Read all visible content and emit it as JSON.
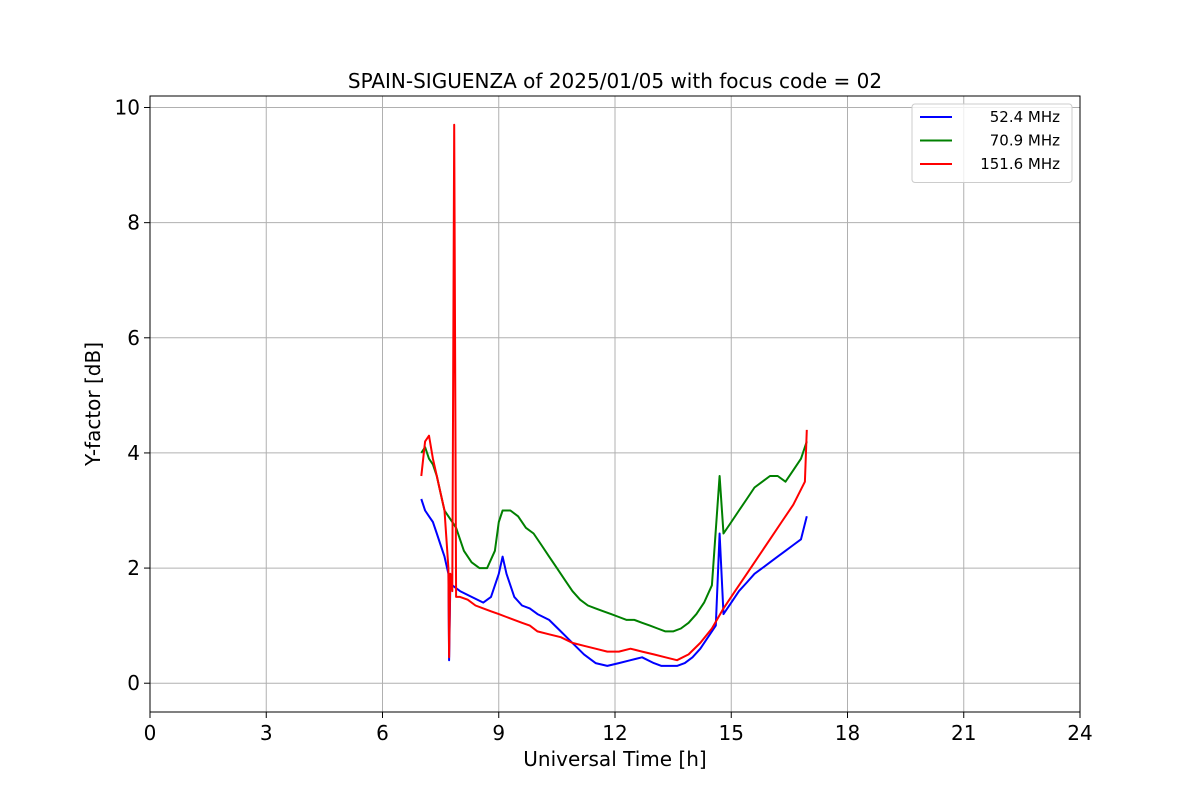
{
  "chart_data": {
    "type": "line",
    "title": "SPAIN-SIGUENZA of 2025/01/05 with focus code = 02",
    "xlabel": "Universal Time [h]",
    "ylabel": "Y-factor [dB]",
    "xlim": [
      0,
      24
    ],
    "ylim": [
      -0.5,
      10.2
    ],
    "xticks": [
      0,
      3,
      6,
      9,
      12,
      15,
      18,
      21,
      24
    ],
    "xtick_labels": [
      "0",
      "3",
      "6",
      "9",
      "12",
      "15",
      "18",
      "21",
      "24"
    ],
    "yticks": [
      0,
      2,
      4,
      6,
      8,
      10
    ],
    "ytick_labels": [
      "0",
      "2",
      "4",
      "6",
      "8",
      "10"
    ],
    "grid": true,
    "legend_position": "top-right",
    "series": [
      {
        "name": "52.4 MHz",
        "color": "#0000ff",
        "x": [
          7.0,
          7.1,
          7.2,
          7.3,
          7.4,
          7.5,
          7.6,
          7.7,
          7.72,
          7.75,
          7.8,
          8.0,
          8.3,
          8.6,
          8.8,
          9.0,
          9.1,
          9.2,
          9.4,
          9.6,
          9.8,
          10.0,
          10.3,
          10.6,
          10.9,
          11.2,
          11.5,
          11.8,
          12.1,
          12.4,
          12.7,
          13.0,
          13.2,
          13.4,
          13.6,
          13.8,
          14.0,
          14.2,
          14.4,
          14.6,
          14.7,
          14.8,
          15.0,
          15.2,
          15.4,
          15.6,
          15.8,
          16.0,
          16.2,
          16.4,
          16.6,
          16.8,
          16.95
        ],
        "y": [
          3.2,
          3.0,
          2.9,
          2.8,
          2.6,
          2.4,
          2.2,
          1.9,
          0.4,
          1.7,
          1.7,
          1.6,
          1.5,
          1.4,
          1.5,
          1.9,
          2.2,
          1.9,
          1.5,
          1.35,
          1.3,
          1.2,
          1.1,
          0.9,
          0.7,
          0.5,
          0.35,
          0.3,
          0.35,
          0.4,
          0.45,
          0.35,
          0.3,
          0.3,
          0.3,
          0.35,
          0.45,
          0.6,
          0.8,
          1.0,
          2.6,
          1.2,
          1.4,
          1.6,
          1.75,
          1.9,
          2.0,
          2.1,
          2.2,
          2.3,
          2.4,
          2.5,
          2.9
        ]
      },
      {
        "name": "70.9 MHz",
        "color": "#008000",
        "x": [
          7.0,
          7.1,
          7.2,
          7.3,
          7.4,
          7.5,
          7.6,
          7.7,
          7.8,
          7.9,
          8.0,
          8.1,
          8.3,
          8.5,
          8.7,
          8.9,
          9.0,
          9.1,
          9.3,
          9.5,
          9.7,
          9.9,
          10.1,
          10.3,
          10.5,
          10.7,
          10.9,
          11.1,
          11.3,
          11.5,
          11.7,
          11.9,
          12.1,
          12.3,
          12.5,
          12.7,
          12.9,
          13.1,
          13.3,
          13.5,
          13.7,
          13.9,
          14.1,
          14.3,
          14.5,
          14.7,
          14.8,
          15.0,
          15.2,
          15.4,
          15.6,
          15.8,
          16.0,
          16.2,
          16.4,
          16.6,
          16.8,
          16.95
        ],
        "y": [
          4.0,
          4.1,
          3.9,
          3.8,
          3.6,
          3.3,
          3.0,
          2.9,
          2.8,
          2.7,
          2.5,
          2.3,
          2.1,
          2.0,
          2.0,
          2.3,
          2.8,
          3.0,
          3.0,
          2.9,
          2.7,
          2.6,
          2.4,
          2.2,
          2.0,
          1.8,
          1.6,
          1.45,
          1.35,
          1.3,
          1.25,
          1.2,
          1.15,
          1.1,
          1.1,
          1.05,
          1.0,
          0.95,
          0.9,
          0.9,
          0.95,
          1.05,
          1.2,
          1.4,
          1.7,
          3.6,
          2.6,
          2.8,
          3.0,
          3.2,
          3.4,
          3.5,
          3.6,
          3.6,
          3.5,
          3.7,
          3.9,
          4.2
        ]
      },
      {
        "name": "151.6 MHz",
        "color": "#ff0000",
        "x": [
          7.0,
          7.1,
          7.2,
          7.3,
          7.4,
          7.5,
          7.6,
          7.7,
          7.72,
          7.75,
          7.8,
          7.85,
          7.9,
          8.0,
          8.2,
          8.4,
          8.6,
          8.8,
          9.0,
          9.2,
          9.4,
          9.6,
          9.8,
          10.0,
          10.3,
          10.6,
          10.9,
          11.2,
          11.5,
          11.8,
          12.1,
          12.4,
          12.7,
          13.0,
          13.3,
          13.6,
          13.9,
          14.2,
          14.5,
          14.8,
          15.1,
          15.4,
          15.7,
          16.0,
          16.3,
          16.6,
          16.9,
          16.95
        ],
        "y": [
          3.6,
          4.2,
          4.3,
          3.9,
          3.6,
          3.3,
          3.0,
          2.0,
          0.45,
          1.9,
          1.6,
          9.7,
          1.5,
          1.5,
          1.45,
          1.35,
          1.3,
          1.25,
          1.2,
          1.15,
          1.1,
          1.05,
          1.0,
          0.9,
          0.85,
          0.8,
          0.7,
          0.65,
          0.6,
          0.55,
          0.55,
          0.6,
          0.55,
          0.5,
          0.45,
          0.4,
          0.5,
          0.7,
          0.95,
          1.3,
          1.6,
          1.9,
          2.2,
          2.5,
          2.8,
          3.1,
          3.5,
          4.4
        ]
      }
    ]
  }
}
